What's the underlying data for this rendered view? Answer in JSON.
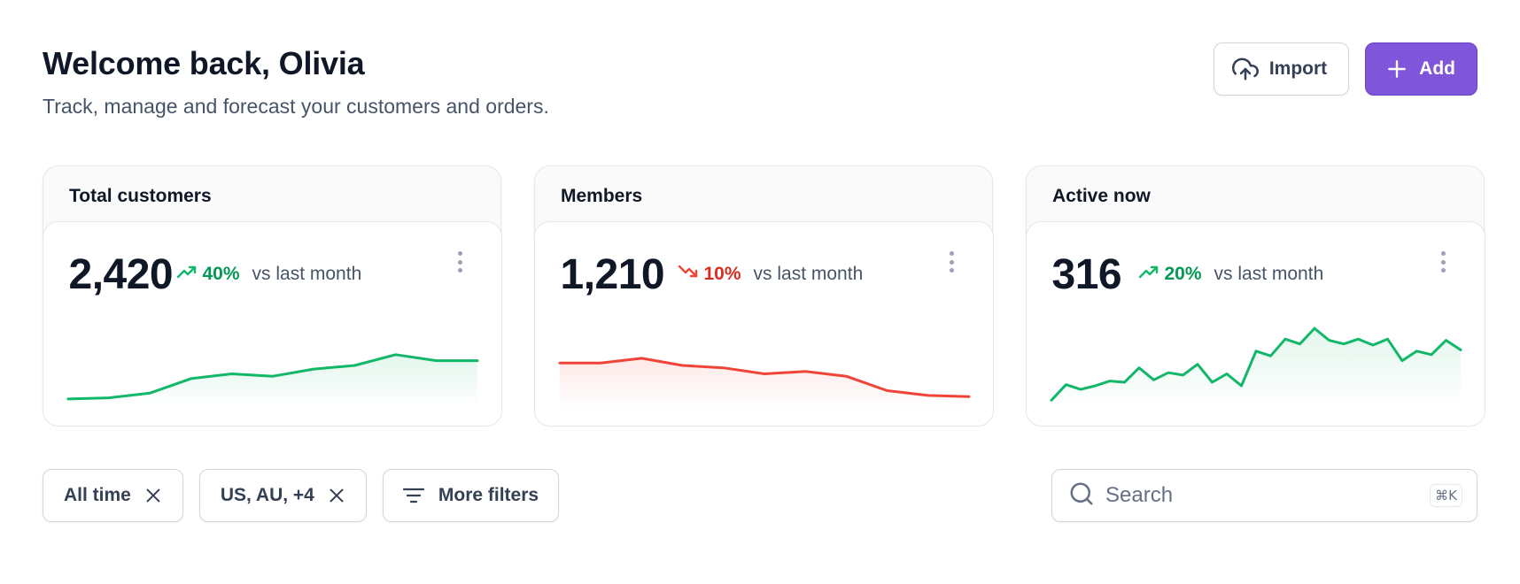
{
  "header": {
    "title": "Welcome back, Olivia",
    "subtitle": "Track, manage and forecast your customers and orders."
  },
  "actions": {
    "import_label": "Import",
    "add_label": "Add",
    "import_icon": "upload-cloud-icon",
    "add_icon": "plus-icon"
  },
  "cards": [
    {
      "title": "Total customers",
      "value": "2,420",
      "change": "40%",
      "direction": "up",
      "comparison": "vs last month",
      "color": "#12b76a",
      "series": [
        3,
        4,
        8,
        20,
        24,
        22,
        28,
        31,
        40,
        35,
        35
      ]
    },
    {
      "title": "Members",
      "value": "1,210",
      "change": "10%",
      "direction": "down",
      "comparison": "vs last month",
      "color": "#f04438",
      "series": [
        33,
        33,
        37,
        31,
        29,
        24,
        26,
        22,
        10,
        6,
        5
      ]
    },
    {
      "title": "Active now",
      "value": "316",
      "change": "20%",
      "direction": "up",
      "comparison": "vs last month",
      "color": "#12b76a",
      "series": [
        2,
        15,
        11,
        14,
        18,
        17,
        29,
        19,
        25,
        23,
        32,
        17,
        24,
        14,
        43,
        39,
        53,
        49,
        62,
        52,
        49,
        53,
        48,
        53,
        35,
        43,
        40,
        52,
        44
      ]
    }
  ],
  "filters": [
    {
      "label": "All time",
      "icon": "close-icon"
    },
    {
      "label": "US, AU, +4",
      "icon": "close-icon"
    },
    {
      "label": "More filters",
      "icon": "filter-lines-icon"
    }
  ],
  "search": {
    "placeholder": "Search",
    "shortcut": "⌘K"
  },
  "colors": {
    "primary": "#7f56d9",
    "success": "#12b76a",
    "error": "#f04438"
  }
}
